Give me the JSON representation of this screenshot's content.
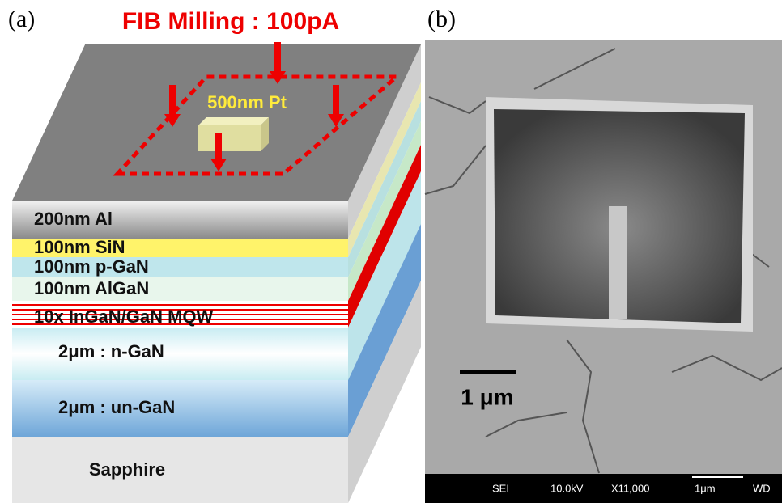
{
  "panel_a": {
    "label": "(a)",
    "title": "FIB Milling : 100pA",
    "pt_label": "500nm Pt",
    "layers": [
      "200nm Al",
      "100nm SiN",
      "100nm p-GaN",
      "100nm AlGaN",
      "10x InGaN/GaN MQW",
      "2μm : n-GaN",
      "2μm : un-GaN",
      "Sapphire"
    ]
  },
  "panel_b": {
    "label": "(b)",
    "scale_bar": "1 μm",
    "info_bar": [
      "SEI",
      "10.0kV",
      "X11,000",
      "1μm",
      "WD"
    ]
  }
}
